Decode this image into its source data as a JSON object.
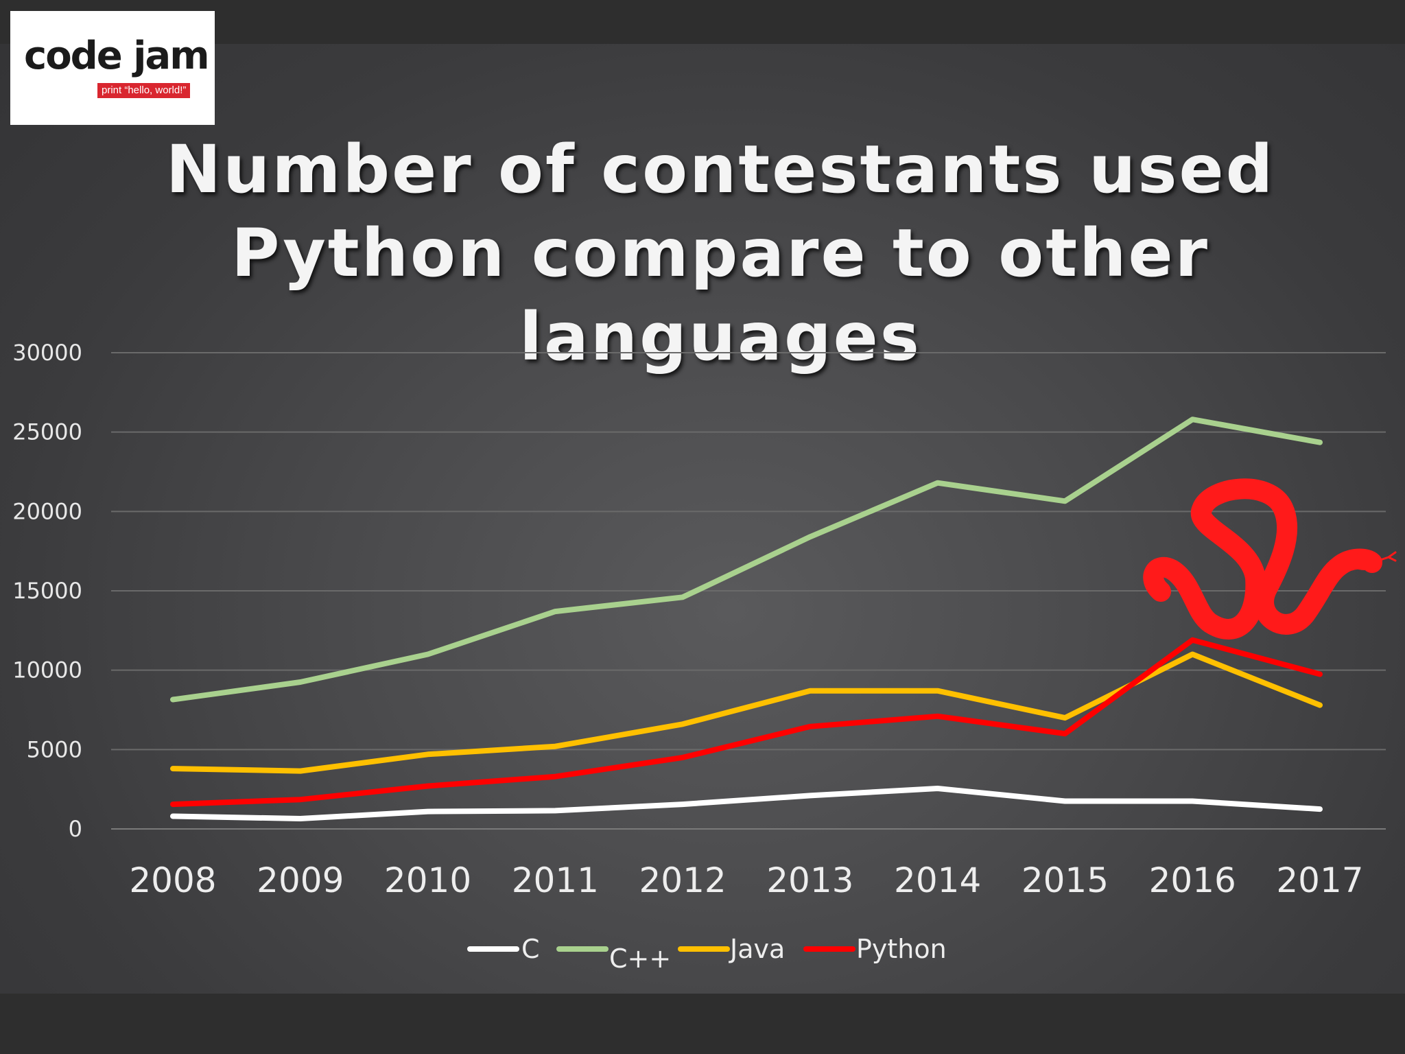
{
  "logo": {
    "wordmark": "code jam",
    "tagline": "print “hello, world!”"
  },
  "title": "Number of contestants used Python compare to other languages",
  "colors": {
    "background": "#4a4a4c",
    "gridline": "#6a6a6a",
    "c": "#ffffff",
    "cpp": "#a9d18e",
    "java": "#ffc000",
    "python": "#ff0000"
  },
  "snake_icon": "python-snake-icon",
  "chart_data": {
    "type": "line",
    "title": "Number of contestants used Python compare to other languages",
    "xlabel": "",
    "ylabel": "",
    "categories": [
      "2008",
      "2009",
      "2010",
      "2011",
      "2012",
      "2013",
      "2014",
      "2015",
      "2016",
      "2017"
    ],
    "ylim": [
      0,
      30000
    ],
    "yticks": [
      0,
      5000,
      10000,
      15000,
      20000,
      25000,
      30000
    ],
    "grid": true,
    "legend_position": "bottom",
    "series": [
      {
        "name": "C",
        "color": "#ffffff",
        "values": [
          800,
          650,
          1100,
          1150,
          1550,
          2100,
          2550,
          1750,
          1750,
          1250
        ]
      },
      {
        "name": "C++",
        "color": "#a9d18e",
        "values": [
          8150,
          9250,
          11000,
          13700,
          14600,
          18400,
          21800,
          20650,
          25800,
          24350
        ]
      },
      {
        "name": "Java",
        "color": "#ffc000",
        "values": [
          3800,
          3650,
          4700,
          5200,
          6600,
          8700,
          8700,
          7000,
          11000,
          7800
        ]
      },
      {
        "name": "Python",
        "color": "#ff0000",
        "values": [
          1550,
          1850,
          2700,
          3300,
          4500,
          6450,
          7100,
          6000,
          11900,
          9750
        ]
      }
    ]
  }
}
